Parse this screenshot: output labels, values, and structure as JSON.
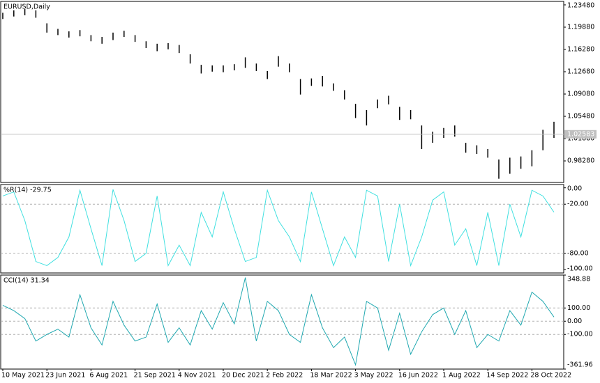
{
  "chart_data": [
    {
      "type": "range",
      "title": "EURUSD,Daily",
      "color": "#000000",
      "high": [
        1.222,
        1.226,
        1.228,
        1.226,
        1.205,
        1.196,
        1.192,
        1.194,
        1.186,
        1.183,
        1.19,
        1.193,
        1.186,
        1.176,
        1.172,
        1.173,
        1.17,
        1.155,
        1.138,
        1.137,
        1.137,
        1.139,
        1.15,
        1.14,
        1.128,
        1.152,
        1.14,
        1.115,
        1.116,
        1.12,
        1.108,
        1.097,
        1.075,
        1.065,
        1.082,
        1.088,
        1.07,
        1.065,
        1.04,
        1.03,
        1.036,
        1.04,
        1.012,
        1.008,
        1.002,
        0.985,
        0.988,
        0.99,
        1.0,
        1.033,
        1.046
      ],
      "low": [
        1.212,
        1.216,
        1.218,
        1.214,
        1.19,
        1.186,
        1.182,
        1.184,
        1.176,
        1.172,
        1.178,
        1.183,
        1.175,
        1.165,
        1.16,
        1.163,
        1.157,
        1.14,
        1.124,
        1.127,
        1.126,
        1.129,
        1.133,
        1.128,
        1.115,
        1.135,
        1.126,
        1.09,
        1.104,
        1.103,
        1.096,
        1.082,
        1.052,
        1.04,
        1.068,
        1.074,
        1.049,
        1.05,
        1.002,
        1.012,
        1.02,
        1.022,
        0.996,
        0.994,
        0.988,
        0.954,
        0.962,
        0.97,
        0.974,
        1.0,
        1.02
      ],
      "last_price": 1.02583,
      "ylim": [
        0.948,
        1.2404
      ],
      "yticks": [
        {
          "value": 1.2348,
          "label": "1.23480"
        },
        {
          "value": 1.1988,
          "label": "1.19880"
        },
        {
          "value": 1.1628,
          "label": "1.16280"
        },
        {
          "value": 1.1268,
          "label": "1.12680"
        },
        {
          "value": 1.0908,
          "label": "1.09080"
        },
        {
          "value": 1.0548,
          "label": "1.05480"
        },
        {
          "value": 1.0188,
          "label": "1.01880"
        },
        {
          "value": 0.9828,
          "label": "0.98280"
        }
      ]
    },
    {
      "type": "line",
      "title": "%R(14) -29.75",
      "color": "#40e0e0",
      "values": [
        -10,
        -5,
        -40,
        -90,
        -95,
        -85,
        -60,
        -3,
        -50,
        -95,
        -2,
        -40,
        -90,
        -80,
        -10,
        -95,
        -70,
        -95,
        -30,
        -60,
        -5,
        -50,
        -90,
        -85,
        -3,
        -40,
        -60,
        -90,
        -5,
        -50,
        -95,
        -60,
        -85,
        -3,
        -10,
        -90,
        -20,
        -95,
        -60,
        -15,
        -5,
        -70,
        -50,
        -95,
        -30,
        -95,
        -20,
        -60,
        -3,
        -10,
        -29.75
      ],
      "ylim": [
        -104,
        4
      ],
      "yticks": [
        {
          "value": 0,
          "label": "0.00"
        },
        {
          "value": -20,
          "label": "-20.00"
        },
        {
          "value": -80,
          "label": "-80.00"
        },
        {
          "value": -100,
          "label": "-100.00"
        }
      ],
      "levels": [
        -20,
        -80
      ]
    },
    {
      "type": "line",
      "title": "CCI(14) 31.34",
      "color": "#20a8b0",
      "values": [
        120,
        80,
        20,
        -150,
        -100,
        -60,
        -120,
        200,
        -50,
        -180,
        150,
        -30,
        -150,
        -120,
        130,
        -160,
        -50,
        -180,
        80,
        -60,
        140,
        -20,
        330,
        -150,
        150,
        80,
        -100,
        -160,
        200,
        -50,
        -200,
        -120,
        -330,
        150,
        100,
        -220,
        60,
        -250,
        -80,
        50,
        100,
        -100,
        80,
        -200,
        -100,
        -150,
        80,
        -30,
        220,
        150,
        31.34
      ],
      "ylim": [
        -361.96,
        348.88
      ],
      "yticks": [
        {
          "value": 348.88,
          "label": "348.88"
        },
        {
          "value": 100,
          "label": "100.00"
        },
        {
          "value": 0,
          "label": "0.00"
        },
        {
          "value": -100,
          "label": "-100.00"
        },
        {
          "value": -361.96,
          "label": "-361.96"
        }
      ],
      "levels": [
        100,
        0,
        -100
      ],
      "x_labels": [
        "10 May 2021",
        "23 Jun 2021",
        "6 Aug 2021",
        "21 Sep 2021",
        "4 Nov 2021",
        "20 Dec 2021",
        "2 Feb 2022",
        "18 Mar 2022",
        "3 May 2022",
        "16 Jun 2022",
        "1 Aug 2022",
        "14 Sep 2022",
        "28 Oct 2022"
      ]
    }
  ]
}
